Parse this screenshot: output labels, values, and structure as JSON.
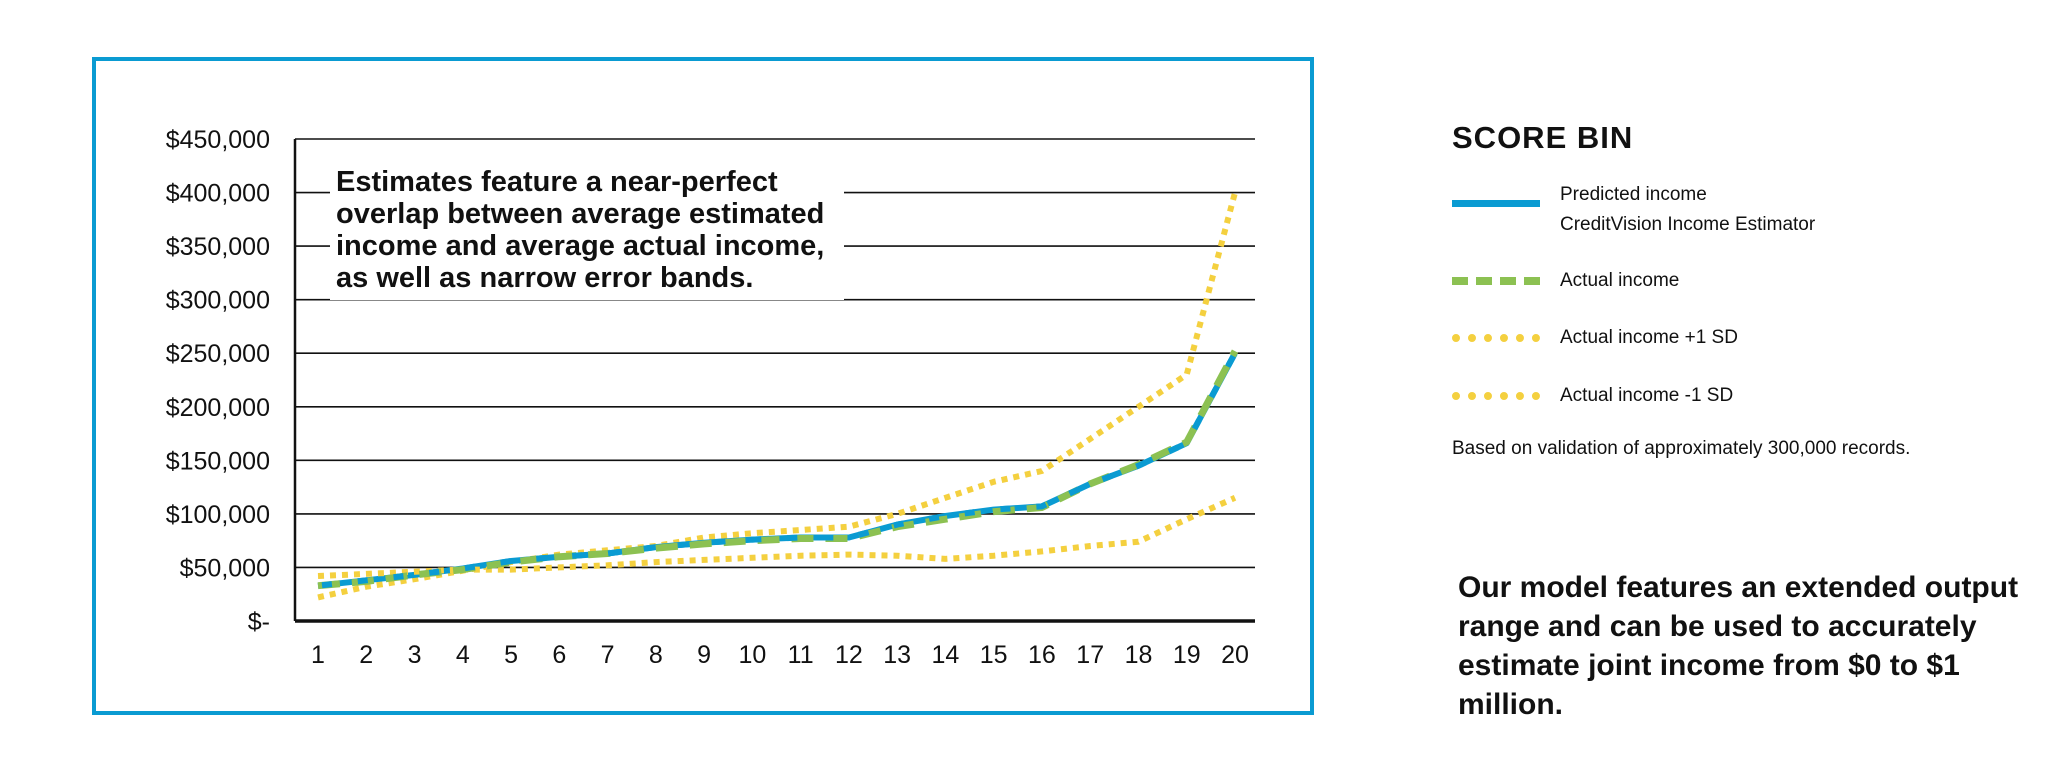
{
  "chart_data": {
    "type": "line",
    "x": [
      "1",
      "2",
      "3",
      "4",
      "5",
      "6",
      "7",
      "8",
      "9",
      "10",
      "11",
      "12",
      "13",
      "14",
      "15",
      "16",
      "17",
      "18",
      "19",
      "20"
    ],
    "y_ticks": [
      "$450,000",
      "$400,000",
      "$350,000",
      "$300,000",
      "$250,000",
      "$200,000",
      "$150,000",
      "$100,000",
      "$50,000",
      "$-"
    ],
    "ylim": [
      0,
      450000
    ],
    "grid": true,
    "annotation": "Estimates feature a near-perfect overlap between average estimated income and average actual income, as well as narrow error bands.",
    "legend_title": "SCORE BIN",
    "legend_position": "right",
    "series": [
      {
        "name": "Actual income +1 SD",
        "color": "#f4d03f",
        "style": "dotted",
        "values": [
          22000,
          32000,
          39000,
          47000,
          55000,
          62000,
          66000,
          70000,
          78000,
          82000,
          85000,
          88000,
          100000,
          115000,
          130000,
          140000,
          170000,
          200000,
          230000,
          400000
        ]
      },
      {
        "name": "Actual income -1 SD",
        "color": "#f4d03f",
        "style": "dotted",
        "values": [
          42000,
          44000,
          46000,
          48000,
          48000,
          50000,
          52000,
          55000,
          57000,
          59000,
          61000,
          62000,
          61000,
          58000,
          61000,
          65000,
          70000,
          74000,
          95000,
          115000
        ]
      },
      {
        "name": "Actual income",
        "color": "#8cc152",
        "style": "dashed",
        "values": [
          33000,
          37000,
          43000,
          48000,
          55000,
          60000,
          63000,
          68000,
          72000,
          75000,
          77000,
          77000,
          88000,
          95000,
          102000,
          106000,
          128000,
          146000,
          167000,
          252000
        ]
      },
      {
        "name": "Predicted income",
        "subname": "CreditVision Income Estimator",
        "color": "#0a9bd2",
        "style": "solid",
        "values": [
          33000,
          38000,
          43000,
          49000,
          56000,
          60000,
          63000,
          69000,
          73000,
          76000,
          78000,
          78000,
          90000,
          98000,
          104000,
          107000,
          128000,
          145000,
          166000,
          250000
        ]
      }
    ]
  },
  "legend": {
    "title": "SCORE BIN",
    "items": [
      {
        "label": "Predicted income",
        "sublabel": "CreditVision Income Estimator"
      },
      {
        "label": "Actual income"
      },
      {
        "label": "Actual income +1 SD"
      },
      {
        "label": "Actual income -1 SD"
      }
    ]
  },
  "note": "Based on validation of approximately 300,000 records.",
  "takeaway": "Our model features an extended output range and can be used to accurately estimate joint income from $0 to $1 million."
}
